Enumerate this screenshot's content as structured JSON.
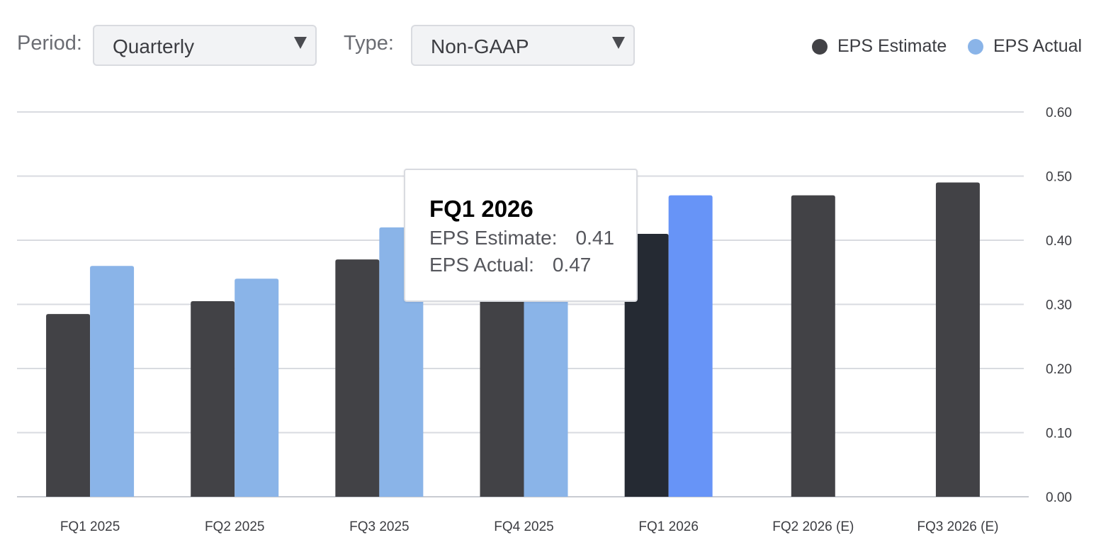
{
  "controls": {
    "period_label": "Period:",
    "period_value": "Quarterly",
    "type_label": "Type:",
    "type_value": "Non-GAAP"
  },
  "legend": [
    {
      "label": "EPS Estimate",
      "color": "#424246"
    },
    {
      "label": "EPS Actual",
      "color": "#8ab4e8"
    }
  ],
  "tooltip": {
    "title": "FQ1 2026",
    "estimate_label": "EPS Estimate:",
    "estimate_value": "0.41",
    "actual_label": "EPS Actual:",
    "actual_value": "0.47"
  },
  "chart_data": {
    "type": "bar",
    "categories": [
      "FQ1 2025",
      "FQ2 2025",
      "FQ3 2025",
      "FQ4 2025",
      "FQ1 2026",
      "FQ2 2026 (E)",
      "FQ3 2026 (E)"
    ],
    "series": [
      {
        "name": "EPS Estimate",
        "values": [
          0.285,
          0.305,
          0.37,
          0.39,
          0.41,
          0.47,
          0.49
        ]
      },
      {
        "name": "EPS Actual",
        "values": [
          0.36,
          0.34,
          0.42,
          0.39,
          0.47,
          null,
          null
        ]
      }
    ],
    "yticks": [
      "0.00",
      "0.10",
      "0.20",
      "0.30",
      "0.40",
      "0.50",
      "0.60"
    ],
    "ylim": [
      0,
      0.6
    ],
    "y_axis_side": "right",
    "grid": true,
    "legend_position": "top-right",
    "highlighted_category": "FQ1 2026",
    "colors": {
      "estimate": "#424246",
      "actual": "#8ab4e8",
      "estimate_highlight": "#252a33",
      "actual_highlight": "#6794f7",
      "grid": "#d9dbe0"
    }
  }
}
